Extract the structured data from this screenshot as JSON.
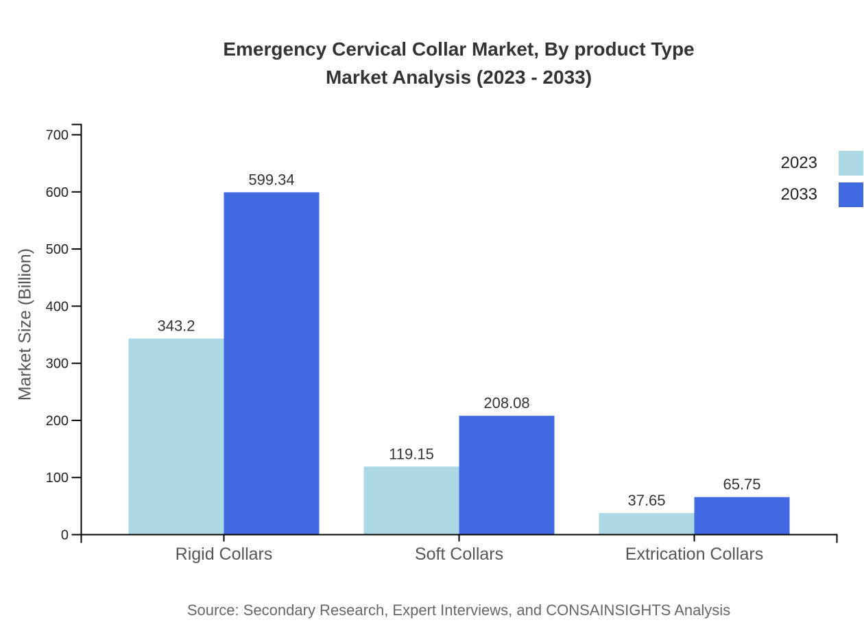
{
  "chart_data": {
    "type": "bar",
    "title_lines": [
      "Emergency Cervical Collar Market, By product Type",
      "Market Analysis (2023 - 2033)"
    ],
    "ylabel": "Market Size (Billion)",
    "xlabel": "",
    "categories": [
      "Rigid Collars",
      "Soft Collars",
      "Extrication Collars"
    ],
    "series": [
      {
        "name": "2023",
        "color": "#ADD8E6",
        "values": [
          343.2,
          119.15,
          37.65
        ]
      },
      {
        "name": "2033",
        "color": "#4169E1",
        "values": [
          599.34,
          208.08,
          65.75
        ]
      }
    ],
    "value_labels": [
      [
        "343.2",
        "599.34"
      ],
      [
        "119.15",
        "208.08"
      ],
      [
        "37.65",
        "65.75"
      ]
    ],
    "ylim": [
      0,
      718
    ],
    "yticks": [
      0,
      100,
      200,
      300,
      400,
      500,
      600,
      700
    ],
    "grid": false,
    "legend_position": "top-right",
    "source_note": "Source: Secondary Research, Expert Interviews, and CONSAINSIGHTS Analysis"
  },
  "style_colors": {
    "background": "#ffffff",
    "axis": "#000000",
    "title_text": "#333333",
    "tick_label": "#222222",
    "value_label": "#333333",
    "category_label": "#555555",
    "axis_title": "#555555",
    "legend_label": "#222222",
    "source_text": "#666666"
  }
}
